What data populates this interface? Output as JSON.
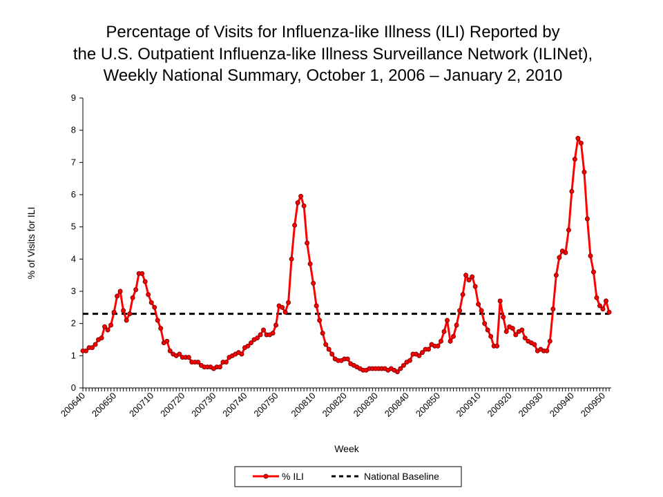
{
  "chart_data": {
    "type": "line",
    "title": [
      "Percentage of Visits for Influenza-like Illness (ILI) Reported by",
      "the U.S. Outpatient Influenza-like Illness Surveillance Network (ILINet),",
      "Weekly National Summary, October 1, 2006 – January 2, 2010"
    ],
    "x_label": "Week",
    "y_label": "% of Visits for ILI",
    "categories": [
      "200640",
      null,
      null,
      null,
      null,
      null,
      null,
      null,
      null,
      null,
      "200650",
      null,
      null,
      null,
      null,
      null,
      null,
      null,
      null,
      null,
      null,
      null,
      "200710",
      null,
      null,
      null,
      null,
      null,
      null,
      null,
      null,
      null,
      "200720",
      null,
      null,
      null,
      null,
      null,
      null,
      null,
      null,
      null,
      "200730",
      null,
      null,
      null,
      null,
      null,
      null,
      null,
      null,
      null,
      "200740",
      null,
      null,
      null,
      null,
      null,
      null,
      null,
      null,
      null,
      "200750",
      null,
      null,
      null,
      null,
      null,
      null,
      null,
      null,
      null,
      null,
      null,
      "200810",
      null,
      null,
      null,
      null,
      null,
      null,
      null,
      null,
      null,
      "200820",
      null,
      null,
      null,
      null,
      null,
      null,
      null,
      null,
      null,
      "200830",
      null,
      null,
      null,
      null,
      null,
      null,
      null,
      null,
      null,
      "200840",
      null,
      null,
      null,
      null,
      null,
      null,
      null,
      null,
      null,
      "200850",
      null,
      null,
      null,
      null,
      null,
      null,
      null,
      null,
      null,
      null,
      null,
      null,
      "200910",
      null,
      null,
      null,
      null,
      null,
      null,
      null,
      null,
      null,
      "200920",
      null,
      null,
      null,
      null,
      null,
      null,
      null,
      null,
      null,
      "200930",
      null,
      null,
      null,
      null,
      null,
      null,
      null,
      null,
      null,
      "200940",
      null,
      null,
      null,
      null,
      null,
      null,
      null,
      null,
      null,
      "200950",
      null,
      null
    ],
    "series": [
      {
        "name": "% ILI",
        "color": "#ff0000",
        "values": [
          1.15,
          1.15,
          1.25,
          1.25,
          1.35,
          1.5,
          1.55,
          1.9,
          1.8,
          1.95,
          2.35,
          2.85,
          3.0,
          2.4,
          2.1,
          2.3,
          2.8,
          3.05,
          3.55,
          3.55,
          3.3,
          2.9,
          2.65,
          2.5,
          2.1,
          1.85,
          1.4,
          1.45,
          1.15,
          1.05,
          1.0,
          1.05,
          0.95,
          0.95,
          0.95,
          0.8,
          0.8,
          0.8,
          0.7,
          0.65,
          0.65,
          0.65,
          0.6,
          0.65,
          0.65,
          0.8,
          0.8,
          0.95,
          1.0,
          1.05,
          1.1,
          1.05,
          1.25,
          1.3,
          1.4,
          1.5,
          1.55,
          1.65,
          1.8,
          1.65,
          1.65,
          1.7,
          1.95,
          2.55,
          2.5,
          2.35,
          2.65,
          4.0,
          5.05,
          5.75,
          5.95,
          5.65,
          4.5,
          3.85,
          3.25,
          2.55,
          2.1,
          1.7,
          1.35,
          1.2,
          1.05,
          0.9,
          0.85,
          0.85,
          0.9,
          0.9,
          0.75,
          0.7,
          0.65,
          0.6,
          0.55,
          0.55,
          0.6,
          0.6,
          0.6,
          0.6,
          0.6,
          0.6,
          0.55,
          0.6,
          0.55,
          0.5,
          0.6,
          0.7,
          0.8,
          0.85,
          1.05,
          1.05,
          1.0,
          1.1,
          1.2,
          1.2,
          1.35,
          1.3,
          1.3,
          1.45,
          1.75,
          2.1,
          1.45,
          1.6,
          1.95,
          2.4,
          2.9,
          3.5,
          3.35,
          3.45,
          3.15,
          2.6,
          2.4,
          2.0,
          1.8,
          1.6,
          1.3,
          1.3,
          2.7,
          2.2,
          1.75,
          1.9,
          1.85,
          1.65,
          1.75,
          1.8,
          1.55,
          1.45,
          1.4,
          1.35,
          1.15,
          1.2,
          1.15,
          1.15,
          1.45,
          2.45,
          3.5,
          4.05,
          4.25,
          4.2,
          4.9,
          6.1,
          7.1,
          7.75,
          7.6,
          6.7,
          5.25,
          4.1,
          3.6,
          2.8,
          2.55,
          2.45,
          2.7,
          2.35
        ]
      }
    ],
    "baseline": {
      "name": "National Baseline",
      "value": 2.3,
      "color": "#000000"
    },
    "ylim": [
      0,
      9
    ],
    "yticks": [
      0,
      1,
      2,
      3,
      4,
      5,
      6,
      7,
      8,
      9
    ]
  }
}
